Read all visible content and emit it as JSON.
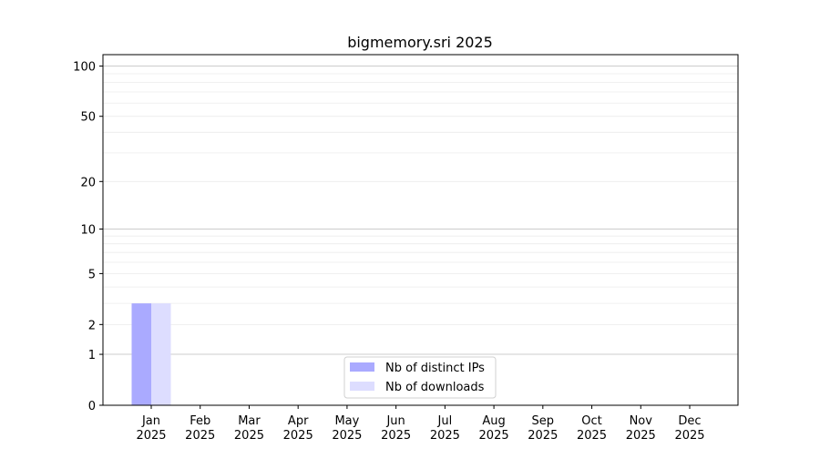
{
  "chart_data": {
    "type": "bar",
    "title": "bigmemory.sri 2025",
    "xlabel": "",
    "ylabel": "",
    "yscale": "symlog",
    "ylim": [
      0,
      117
    ],
    "yticks": [
      0,
      1,
      2,
      5,
      10,
      20,
      50,
      100
    ],
    "grid": true,
    "legend_position": "lower center",
    "categories": [
      "Jan\n2025",
      "Feb\n2025",
      "Mar\n2025",
      "Apr\n2025",
      "May\n2025",
      "Jun\n2025",
      "Jul\n2025",
      "Aug\n2025",
      "Sep\n2025",
      "Oct\n2025",
      "Nov\n2025",
      "Dec\n2025"
    ],
    "series": [
      {
        "name": "Nb of distinct IPs",
        "color": "#aaaaff",
        "values": [
          3,
          0,
          0,
          0,
          0,
          0,
          0,
          0,
          0,
          0,
          0,
          0
        ]
      },
      {
        "name": "Nb of downloads",
        "color": "#ddddff",
        "values": [
          3,
          0,
          0,
          0,
          0,
          0,
          0,
          0,
          0,
          0,
          0,
          0
        ]
      }
    ]
  }
}
